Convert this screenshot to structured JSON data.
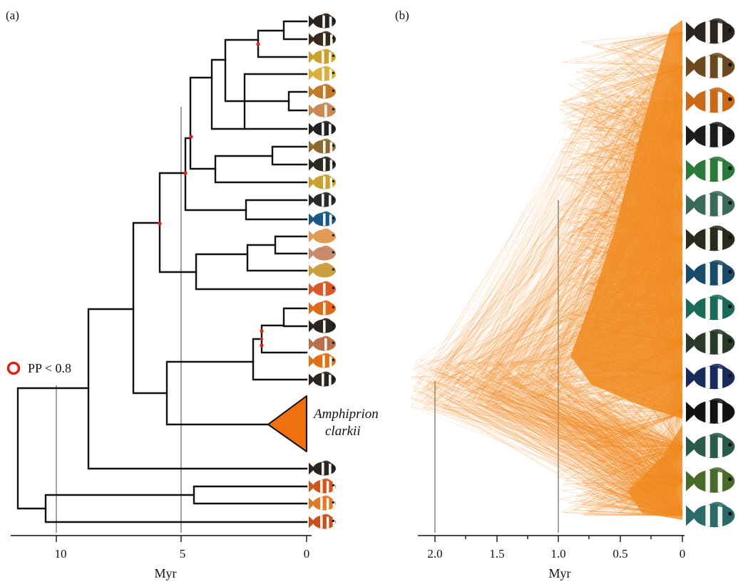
{
  "panels": {
    "a": {
      "label": "(a)",
      "axis": {
        "title": "Myr",
        "ticks": [
          "10",
          "5",
          "0"
        ]
      },
      "legend": {
        "text": "PP < 0.8",
        "color": "#e02010"
      },
      "collapsed_clade": {
        "line1": "Amphiprion",
        "line2": "clarkii",
        "color": "#f07010"
      },
      "tip_count": 26,
      "low_support_node_count": 7
    },
    "b": {
      "label": "(b)",
      "axis": {
        "title": "Myr",
        "ticks": [
          "2.0",
          "1.5",
          "1.0",
          "0.5",
          "0"
        ]
      },
      "tree_color": "#f08a1e",
      "tip_count": 15
    }
  }
}
